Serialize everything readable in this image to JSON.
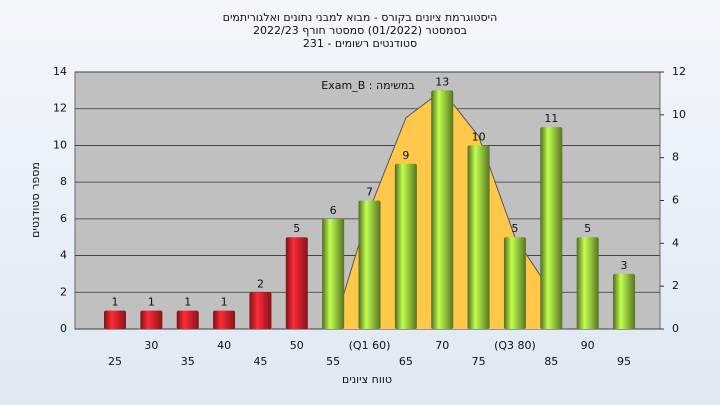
{
  "chart_data": {
    "type": "bar",
    "title_lines": [
      "היסטוגרמת ציונים בקורס - מבוא למבני נתונים ואלגוריתמים",
      "בסמסטר  (01/2022)  סמסטר חורף 2022/23",
      "סטודנטים רשומים - 231"
    ],
    "annotation": "Exam_B : במשימה",
    "x_label": "טווח ציונים",
    "y_label": "מספר סטודנטים",
    "categories": [
      "25",
      "30",
      "35",
      "40",
      "45",
      "50",
      "55",
      "(Q1 60)",
      "65",
      "70",
      "75",
      "(Q3 80)",
      "85",
      "90",
      "95"
    ],
    "values": [
      1,
      1,
      1,
      1,
      2,
      5,
      6,
      7,
      9,
      13,
      10,
      5,
      11,
      5,
      3
    ],
    "colors": [
      "#e0202a",
      "#e0202a",
      "#e0202a",
      "#e0202a",
      "#e0202a",
      "#e0202a",
      "#8fc23a",
      "#8fc23a",
      "#8fc23a",
      "#8fc23a",
      "#8fc23a",
      "#8fc23a",
      "#8fc23a",
      "#8fc23a",
      "#8fc23a"
    ],
    "curve": {
      "color": "#ffc84a",
      "values": [
        null,
        null,
        null,
        null,
        null,
        null,
        0,
        6.5,
        11.5,
        13,
        10.5,
        5,
        2,
        null,
        null
      ]
    },
    "ylim": [
      0,
      14
    ],
    "yticks": [
      0,
      2,
      4,
      6,
      8,
      10,
      12,
      14
    ],
    "y2lim": [
      0,
      12
    ],
    "y2ticks": [
      0,
      2,
      4,
      6,
      8,
      10,
      12
    ],
    "grid": true,
    "plot_background": "#c0c0c0"
  }
}
